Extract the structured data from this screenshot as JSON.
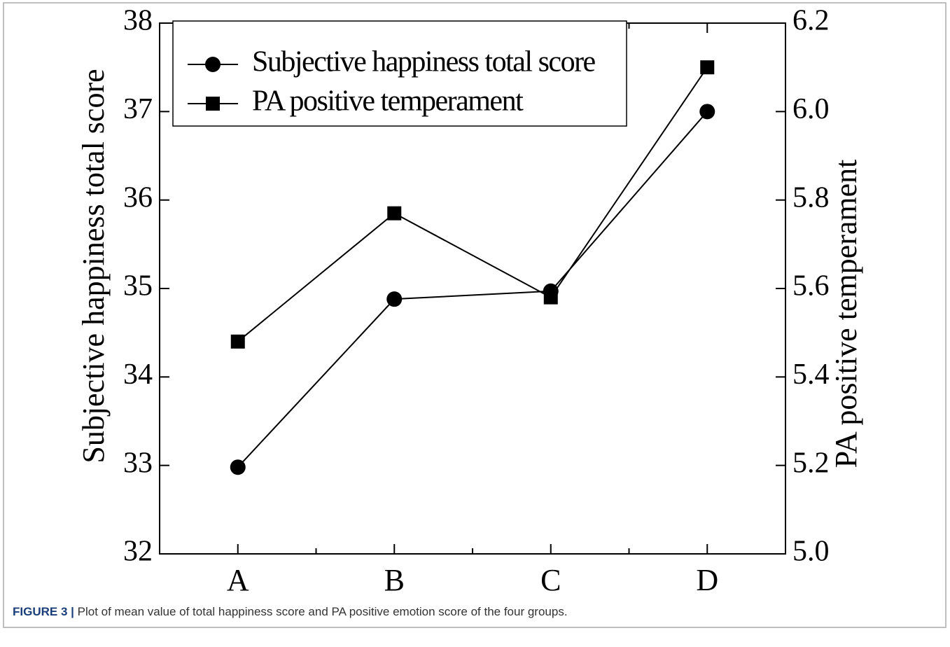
{
  "chart_data": {
    "type": "line",
    "y_label": "Subjective happiness total score",
    "y2_label": "PA positive temperament",
    "categories": [
      "A",
      "B",
      "C",
      "D"
    ],
    "series": [
      {
        "name": "Subjective happiness total score",
        "color": "#000000",
        "marker": "circle",
        "values": [
          32.98,
          34.88,
          34.97,
          37.0
        ]
      },
      {
        "name": "PA positive temperament",
        "color": "#000000",
        "marker": "square",
        "axis": "y2",
        "values": [
          5.48,
          5.77,
          5.58,
          6.1
        ]
      }
    ],
    "ylim": [
      32,
      38
    ],
    "yticks": [
      32,
      33,
      34,
      35,
      36,
      37,
      38
    ],
    "y2lim": [
      5.0,
      6.2
    ],
    "y2ticks": [
      {
        "value": 5.0,
        "label": "5.0"
      },
      5.2,
      5.4,
      5.6,
      5.8,
      {
        "value": 6.0,
        "label": "6.0"
      },
      6.2
    ],
    "legend": "upper left"
  },
  "caption": {
    "label": "FIGURE 3 |",
    "text": "Plot of mean value of total happiness score and PA positive emotion score of the four groups."
  }
}
